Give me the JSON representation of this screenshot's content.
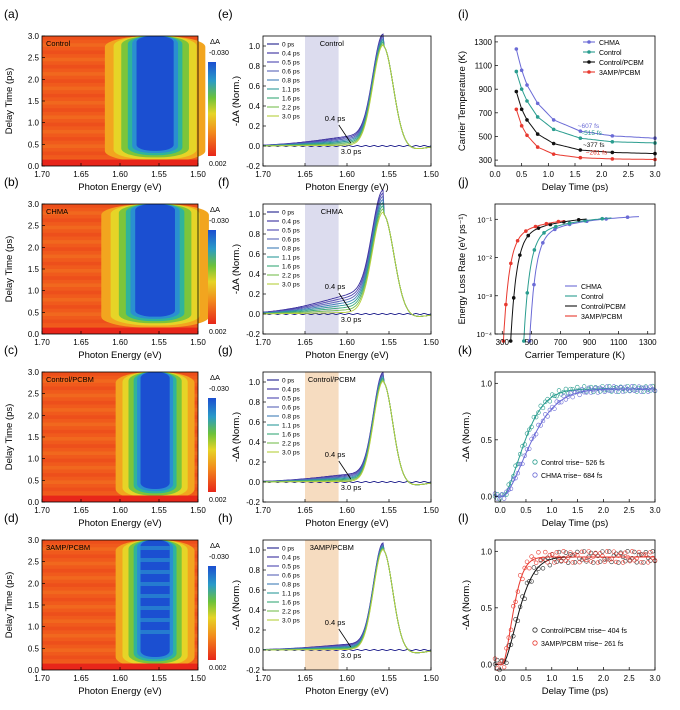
{
  "chart_data": [
    {
      "id": "a",
      "panel_label": "(a)",
      "type": "heatmap",
      "sample": "Control",
      "xlabel": "Photon Energy (eV)",
      "ylabel": "Delay Time (ps)",
      "xticks": [
        "1.70",
        "1.65",
        "1.60",
        "1.55",
        "1.50"
      ],
      "yticks": [
        "0.0",
        "0.5",
        "1.0",
        "1.5",
        "2.0",
        "2.5",
        "3.0"
      ],
      "xlim": [
        1.7,
        1.5
      ],
      "ylim": [
        0,
        3.0
      ],
      "colorbar": {
        "title": "ΔA",
        "max_label": "-0.030",
        "min_label": "0.002"
      },
      "bleach": {
        "center_eV": 1.555,
        "half_width_eV": 0.028,
        "onset_ps": 0.35
      }
    },
    {
      "id": "b",
      "panel_label": "(b)",
      "type": "heatmap",
      "sample": "CHMA",
      "xlabel": "Photon Energy (eV)",
      "ylabel": "Delay Time (ps)",
      "xticks": [
        "1.70",
        "1.65",
        "1.60",
        "1.55",
        "1.50"
      ],
      "yticks": [
        "0.0",
        "0.5",
        "1.0",
        "1.5",
        "2.0",
        "2.5",
        "3.0"
      ],
      "xlim": [
        1.7,
        1.5
      ],
      "ylim": [
        0,
        3.0
      ],
      "colorbar": {
        "title": "ΔA",
        "max_label": "-0.030",
        "min_label": "0.002"
      },
      "bleach": {
        "center_eV": 1.555,
        "half_width_eV": 0.03,
        "onset_ps": 0.4
      }
    },
    {
      "id": "c",
      "panel_label": "(c)",
      "type": "heatmap",
      "sample": "Control/PCBM",
      "xlabel": "Photon Energy (eV)",
      "ylabel": "Delay Time (ps)",
      "xticks": [
        "1.70",
        "1.65",
        "1.60",
        "1.55",
        "1.50"
      ],
      "yticks": [
        "0.0",
        "0.5",
        "1.0",
        "1.5",
        "2.0",
        "2.5",
        "3.0"
      ],
      "xlim": [
        1.7,
        1.5
      ],
      "ylim": [
        0,
        3.0
      ],
      "colorbar": {
        "title": "ΔA",
        "max_label": "-0.030",
        "min_label": "0.002"
      },
      "bleach": {
        "center_eV": 1.555,
        "half_width_eV": 0.022,
        "onset_ps": 0.3
      }
    },
    {
      "id": "d",
      "panel_label": "(d)",
      "type": "heatmap",
      "sample": "3AMP/PCBM",
      "xlabel": "Photon Energy (eV)",
      "ylabel": "Delay Time (ps)",
      "xticks": [
        "1.70",
        "1.65",
        "1.60",
        "1.55",
        "1.50"
      ],
      "yticks": [
        "0.0",
        "0.5",
        "1.0",
        "1.5",
        "2.0",
        "2.5",
        "3.0"
      ],
      "xlim": [
        1.7,
        1.5
      ],
      "ylim": [
        0,
        3.0
      ],
      "colorbar": {
        "title": "ΔA",
        "max_label": "-0.030",
        "min_label": "0.002"
      },
      "bleach": {
        "center_eV": 1.555,
        "half_width_eV": 0.022,
        "onset_ps": 0.3
      }
    },
    {
      "id": "e",
      "panel_label": "(e)",
      "type": "line",
      "title": "Control",
      "shade": "blue",
      "xlabel": "Photon Energy (eV)",
      "ylabel": "-ΔA (Norm.)",
      "xticks": [
        "1.70",
        "1.65",
        "1.60",
        "1.55",
        "1.50"
      ],
      "yticks": [
        "-0.2",
        "0.0",
        "0.2",
        "0.4",
        "0.6",
        "0.8",
        "1.0"
      ],
      "xlim": [
        1.7,
        1.5
      ],
      "ylim": [
        -0.2,
        1.1
      ],
      "shade_range_eV": [
        1.65,
        1.61
      ],
      "annotation_start": "0.4 ps",
      "annotation_end": "3.0 ps",
      "legend": [
        "0 ps",
        "0.4 ps",
        "0.5 ps",
        "0.6 ps",
        "0.8 ps",
        "1.1 ps",
        "1.6 ps",
        "2.2 ps",
        "3.0 ps"
      ],
      "peak_eV": 1.557,
      "peak_width_eV": 0.017,
      "tail_amplitude_0p4ps": 0.1
    },
    {
      "id": "f",
      "panel_label": "(f)",
      "type": "line",
      "title": "CHMA",
      "shade": "blue",
      "xlabel": "Photon Energy (eV)",
      "ylabel": "-ΔA (Norm.)",
      "xticks": [
        "1.70",
        "1.65",
        "1.60",
        "1.55",
        "1.50"
      ],
      "yticks": [
        "-0.2",
        "0.0",
        "0.2",
        "0.4",
        "0.6",
        "0.8",
        "1.0"
      ],
      "xlim": [
        1.7,
        1.5
      ],
      "ylim": [
        -0.2,
        1.1
      ],
      "shade_range_eV": [
        1.65,
        1.61
      ],
      "annotation_start": "0.4 ps",
      "annotation_end": "3.0 ps",
      "legend": [
        "0 ps",
        "0.4 ps",
        "0.5 ps",
        "0.6 ps",
        "0.8 ps",
        "1.1 ps",
        "1.6 ps",
        "2.2 ps",
        "3.0 ps"
      ],
      "peak_eV": 1.557,
      "peak_width_eV": 0.018,
      "tail_amplitude_0p4ps": 0.2
    },
    {
      "id": "g",
      "panel_label": "(g)",
      "type": "line",
      "title": "Control/PCBM",
      "shade": "orange",
      "xlabel": "Photon Energy (eV)",
      "ylabel": "-ΔA (Norm.)",
      "xticks": [
        "1.70",
        "1.65",
        "1.60",
        "1.55",
        "1.50"
      ],
      "yticks": [
        "-0.2",
        "0.0",
        "0.2",
        "0.4",
        "0.6",
        "0.8",
        "1.0"
      ],
      "xlim": [
        1.7,
        1.5
      ],
      "ylim": [
        -0.2,
        1.1
      ],
      "shade_range_eV": [
        1.65,
        1.61
      ],
      "annotation_start": "0.4 ps",
      "annotation_end": "3.0 ps",
      "legend": [
        "0 ps",
        "0.4 ps",
        "0.5 ps",
        "0.6 ps",
        "0.8 ps",
        "1.1 ps",
        "1.6 ps",
        "2.2 ps",
        "3.0 ps"
      ],
      "peak_eV": 1.557,
      "peak_width_eV": 0.016,
      "tail_amplitude_0p4ps": 0.08
    },
    {
      "id": "h",
      "panel_label": "(h)",
      "type": "line",
      "title": "3AMP/PCBM",
      "shade": "orange",
      "xlabel": "Photon Energy (eV)",
      "ylabel": "-ΔA (Norm.)",
      "xticks": [
        "1.70",
        "1.65",
        "1.60",
        "1.55",
        "1.50"
      ],
      "yticks": [
        "-0.2",
        "0.0",
        "0.2",
        "0.4",
        "0.6",
        "0.8",
        "1.0"
      ],
      "xlim": [
        1.7,
        1.5
      ],
      "ylim": [
        -0.2,
        1.1
      ],
      "shade_range_eV": [
        1.65,
        1.61
      ],
      "annotation_start": "0.4 ps",
      "annotation_end": "3.0 ps",
      "legend": [
        "0 ps",
        "0.4 ps",
        "0.5 ps",
        "0.6 ps",
        "0.8 ps",
        "1.1 ps",
        "1.6 ps",
        "2.2 ps",
        "3.0 ps"
      ],
      "peak_eV": 1.557,
      "peak_width_eV": 0.016,
      "tail_amplitude_0p4ps": 0.06
    },
    {
      "id": "i",
      "panel_label": "(i)",
      "type": "scatter",
      "xlabel": "Delay Time (ps)",
      "ylabel": "Carrier Temperature (K)",
      "xticks": [
        "0.0",
        "0.5",
        "1.0",
        "1.5",
        "2.0",
        "2.5",
        "3.0"
      ],
      "yticks": [
        "300",
        "500",
        "700",
        "900",
        "1100",
        "1300"
      ],
      "xlim": [
        0,
        3.0
      ],
      "ylim": [
        250,
        1350
      ],
      "x": [
        0.4,
        0.5,
        0.6,
        0.8,
        1.1,
        1.6,
        2.2,
        3.0
      ],
      "series": [
        {
          "name": "CHMA",
          "color": "#6b6bd6",
          "values": [
            1240,
            1060,
            935,
            780,
            640,
            545,
            505,
            485
          ],
          "fit_label": "~607 fs"
        },
        {
          "name": "Control",
          "color": "#2a9d8f",
          "values": [
            1050,
            900,
            800,
            665,
            560,
            485,
            455,
            445
          ],
          "fit_label": "~515 fs"
        },
        {
          "name": "Control/PCBM",
          "color": "#111111",
          "values": [
            880,
            730,
            640,
            520,
            440,
            385,
            365,
            355
          ],
          "fit_label": "~377 fs"
        },
        {
          "name": "3AMP/PCBM",
          "color": "#e8392f",
          "values": [
            730,
            590,
            510,
            410,
            350,
            320,
            310,
            305
          ],
          "fit_label": "~261 fs"
        }
      ]
    },
    {
      "id": "j",
      "panel_label": "(j)",
      "type": "scatter",
      "xlabel": "Carrier Temperature (K)",
      "ylabel": "Energy Loss Rate (eV ps⁻¹)",
      "xticks": [
        "300",
        "500",
        "700",
        "900",
        "1100",
        "1300"
      ],
      "yticks": [
        "10⁻⁴",
        "10⁻³",
        "10⁻²",
        "10⁻¹"
      ],
      "xlim": [
        250,
        1350
      ],
      "ylim_log10": [
        -4,
        -0.6
      ],
      "series": [
        {
          "name": "CHMA",
          "color": "#6b6bd6",
          "T0": 485,
          "Tmax": 1240
        },
        {
          "name": "Control",
          "color": "#2a9d8f",
          "T0": 445,
          "Tmax": 1050
        },
        {
          "name": "Control/PCBM",
          "color": "#111111",
          "T0": 355,
          "Tmax": 880
        },
        {
          "name": "3AMP/PCBM",
          "color": "#e8392f",
          "T0": 305,
          "Tmax": 730
        }
      ]
    },
    {
      "id": "k",
      "panel_label": "(k)",
      "type": "scatter",
      "xlabel": "Delay Time (ps)",
      "ylabel": "-ΔA (Norm.)",
      "xticks": [
        "0.0",
        "0.5",
        "1.0",
        "1.5",
        "2.0",
        "2.5",
        "3.0"
      ],
      "yticks": [
        "0.0",
        "0.5",
        "1.0"
      ],
      "xlim": [
        -0.1,
        3.0
      ],
      "ylim": [
        -0.05,
        1.1
      ],
      "series": [
        {
          "name": "Control",
          "color": "#2a9d8f",
          "tau_fs": 526,
          "legend_text": "Control τrise~ 526 fs"
        },
        {
          "name": "CHMA",
          "color": "#6b6bd6",
          "tau_fs": 684,
          "legend_text": "CHMA τrise~ 684 fs"
        }
      ]
    },
    {
      "id": "l",
      "panel_label": "(l)",
      "type": "scatter",
      "xlabel": "Delay Time (ps)",
      "ylabel": "-ΔA (Norm.)",
      "xticks": [
        "0.0",
        "0.5",
        "1.0",
        "1.5",
        "2.0",
        "2.5",
        "3.0"
      ],
      "yticks": [
        "0.0",
        "0.5",
        "1.0"
      ],
      "xlim": [
        -0.1,
        3.0
      ],
      "ylim": [
        -0.05,
        1.1
      ],
      "series": [
        {
          "name": "Control/PCBM",
          "color": "#333333",
          "tau_fs": 404,
          "legend_text": "Control/PCBM τrise~ 404 fs"
        },
        {
          "name": "3AMP/PCBM",
          "color": "#e8392f",
          "tau_fs": 261,
          "legend_text": "3AMP/PCBM τrise~ 261 fs"
        }
      ]
    }
  ]
}
